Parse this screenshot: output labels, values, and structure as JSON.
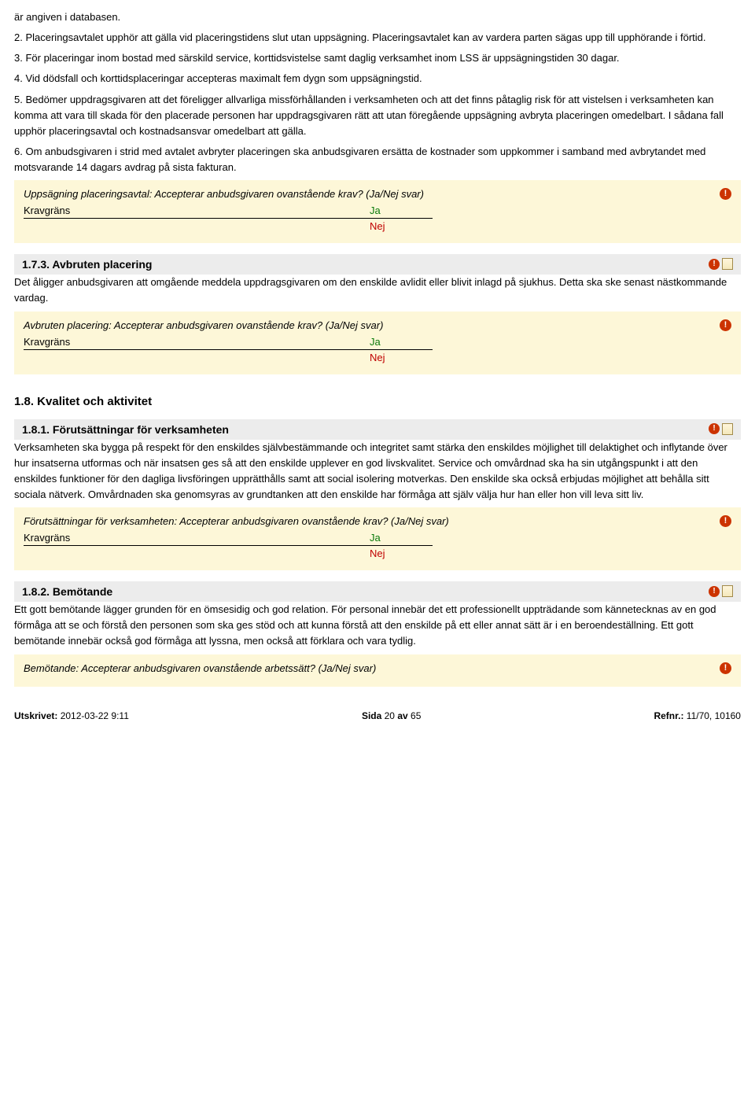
{
  "intro_paragraphs": [
    "är angiven i databasen.",
    "2. Placeringsavtalet upphör att gälla vid placeringstidens slut utan uppsägning. Placeringsavtalet kan av vardera parten sägas upp till upphörande i förtid.",
    "3. För placeringar inom bostad med särskild service, korttidsvistelse samt daglig verksamhet inom LSS är uppsägningstiden 30 dagar.",
    "4. Vid dödsfall och korttidsplaceringar accepteras maximalt fem dygn som uppsägningstid.",
    "5. Bedömer uppdragsgivaren att det föreligger allvarliga missförhållanden i verksamheten och att det finns påtaglig risk för att vistelsen i verksamheten kan komma att vara till skada för den placerade personen har uppdragsgivaren rätt att utan föregående uppsägning avbryta placeringen omedelbart. I sådana fall upphör placeringsavtal och kostnadsansvar omedelbart att gälla.",
    "6. Om anbudsgivaren i strid med avtalet avbryter placeringen ska anbudsgivaren ersätta de kostnader som uppkommer i samband med avbrytandet med motsvarande 14 dagars avdrag på sista fakturan."
  ],
  "box1": {
    "prompt": "Uppsägning placeringsavtal: Accepterar anbudsgivaren ovanstående krav? (Ja/Nej svar)",
    "krav_label": "Kravgräns",
    "ja": "Ja",
    "nej": "Nej"
  },
  "sec173": {
    "title": "1.7.3. Avbruten placering",
    "body": "Det åligger anbudsgivaren att omgående meddela uppdragsgivaren om den enskilde avlidit eller blivit inlagd på sjukhus. Detta ska ske senast nästkommande vardag.",
    "prompt": "Avbruten placering: Accepterar anbudsgivaren ovanstående krav? (Ja/Nej svar)",
    "krav_label": "Kravgräns",
    "ja": "Ja",
    "nej": "Nej"
  },
  "sec18": {
    "title": "1.8. Kvalitet och aktivitet"
  },
  "sec181": {
    "title": "1.8.1. Förutsättningar för verksamheten",
    "body": "Verksamheten ska bygga på respekt för den enskildes självbestämmande och integritet samt stärka den enskildes möjlighet till delaktighet och inflytande över hur insatserna utformas och när insatsen ges så att den enskilde upplever en god livskvalitet. Service och omvårdnad ska ha sin utgångspunkt i att den enskildes funktioner för den dagliga livsföringen upprätthålls samt att social isolering motverkas. Den enskilde ska också erbjudas möjlighet att behålla sitt sociala nätverk. Omvårdnaden ska genomsyras av grundtanken att den enskilde har förmåga att själv välja hur han eller hon vill leva sitt liv.",
    "prompt": "Förutsättningar för verksamheten: Accepterar anbudsgivaren ovanstående krav? (Ja/Nej svar)",
    "krav_label": "Kravgräns",
    "ja": "Ja",
    "nej": "Nej"
  },
  "sec182": {
    "title": "1.8.2. Bemötande",
    "body": "Ett gott bemötande lägger grunden för en ömsesidig och god relation. För personal innebär det ett professionellt uppträdande som kännetecknas av en god förmåga att se och förstå den personen som ska ges stöd och att kunna förstå att den enskilde på ett eller annat sätt är i en beroendeställning. Ett gott bemötande innebär också god förmåga att lyssna, men också att förklara och vara tydlig.",
    "prompt": "Bemötande: Accepterar anbudsgivaren ovanstående arbetssätt? (Ja/Nej svar)"
  },
  "footer": {
    "printed_label": "Utskrivet:",
    "printed_value": "2012-03-22  9:11",
    "page_prefix": "Sida",
    "page_cur": "20",
    "page_mid": "av",
    "page_total": "65",
    "ref_label": "Refnr.:",
    "ref_value": "11/70, 10160"
  }
}
